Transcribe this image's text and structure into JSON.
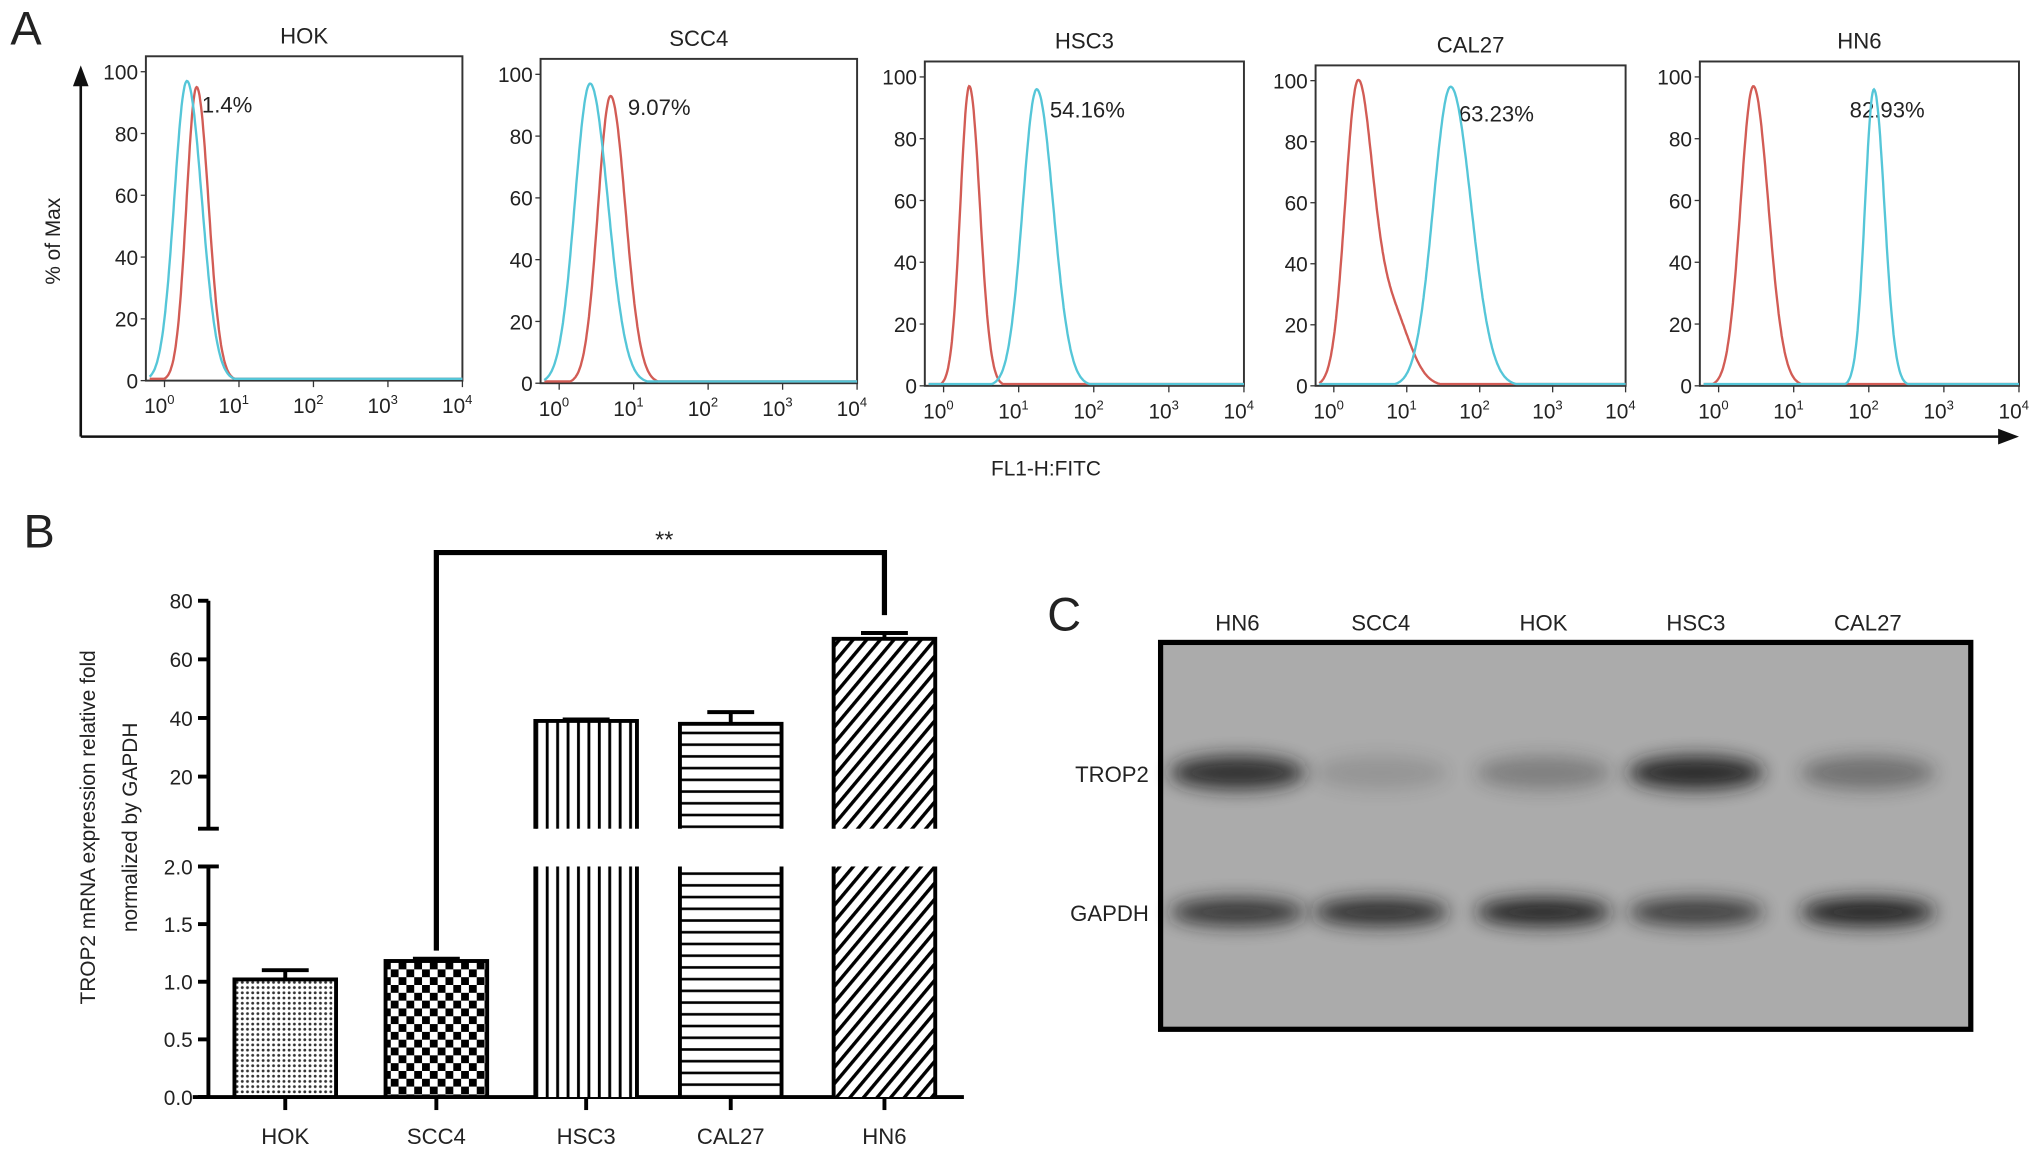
{
  "colors": {
    "control": "#d25c55",
    "sample": "#55c6d8",
    "axis": "#111111",
    "blot_bg": "#ababab",
    "band": "#1a1a1a"
  },
  "panel_labels": {
    "a": "A",
    "b": "B",
    "c": "C"
  },
  "chart_data": [
    {
      "type": "line",
      "subtype": "flow-cytometry-histogram",
      "ylabel": "% of Max",
      "xlabel": "FL1-H:FITC",
      "x_scale": "log",
      "xlim": [
        1,
        10000
      ],
      "ylim": [
        0,
        100
      ],
      "y_ticks": [
        "0",
        "20",
        "40",
        "60",
        "80",
        "100"
      ],
      "x_ticks": [
        {
          "base": "10",
          "exp": "0"
        },
        {
          "base": "10",
          "exp": "1"
        },
        {
          "base": "10",
          "exp": "2"
        },
        {
          "base": "10",
          "exp": "3"
        },
        {
          "base": "10",
          "exp": "4"
        }
      ],
      "panels": [
        {
          "title": "HOK",
          "percent": "1.4%",
          "control_peak": 2.7,
          "control_height": 95,
          "control_width_log10": 0.16,
          "sample_peak": 2.0,
          "sample_height": 97,
          "sample_width_log10": 0.2
        },
        {
          "title": "SCC4",
          "percent": "9.07%",
          "control_peak": 4.9,
          "control_height": 93,
          "control_width_log10": 0.2,
          "sample_peak": 2.6,
          "sample_height": 97,
          "sample_width_log10": 0.24
        },
        {
          "title": "HSC3",
          "percent": "54.16%",
          "control_peak": 2.2,
          "control_height": 97,
          "control_width_log10": 0.14,
          "sample_peak": 17.4,
          "sample_height": 96,
          "sample_width_log10": 0.22
        },
        {
          "title": "CAL27",
          "percent": "63.23%",
          "control_peak": 2.1,
          "control_height": 95,
          "control_width_log10": 0.2,
          "sample_peak": 40,
          "sample_height": 98,
          "sample_width_log10": 0.28
        },
        {
          "title": "HN6",
          "percent": "82.93%",
          "control_peak": 2.9,
          "control_height": 97,
          "control_width_log10": 0.2,
          "sample_peak": 117,
          "sample_height": 96,
          "sample_width_log10": 0.14
        }
      ]
    },
    {
      "type": "bar",
      "ylabel_lines": [
        "TROP2 mRNA expression relative fold",
        "normalized by GAPDH"
      ],
      "categories": [
        "HOK",
        "SCC4",
        "HSC3",
        "CAL27",
        "HN6"
      ],
      "values": [
        1.02,
        1.18,
        39,
        38,
        67
      ],
      "errors": [
        0.08,
        0.02,
        0.5,
        4,
        2
      ],
      "y_axis_broken": true,
      "ylim_lower": [
        0,
        2.0
      ],
      "ylim_upper": [
        20,
        80
      ],
      "y_ticks_lower": [
        "0.0",
        "0.5",
        "1.0",
        "1.5",
        "2.0"
      ],
      "y_ticks_upper": [
        "20",
        "40",
        "60",
        "80"
      ],
      "patterns": [
        "dots",
        "checker",
        "vertical",
        "horizontal",
        "diagonal"
      ],
      "significance": {
        "from": "SCC4",
        "to": "HN6",
        "label": "**"
      }
    }
  ],
  "western_blot": {
    "lanes": [
      "HN6",
      "SCC4",
      "HOK",
      "HSC3",
      "CAL27"
    ],
    "rows": [
      {
        "label": "TROP2",
        "intensities": [
          0.85,
          0.15,
          0.3,
          0.9,
          0.4
        ]
      },
      {
        "label": "GAPDH",
        "intensities": [
          0.8,
          0.85,
          0.92,
          0.75,
          0.95
        ]
      }
    ]
  }
}
